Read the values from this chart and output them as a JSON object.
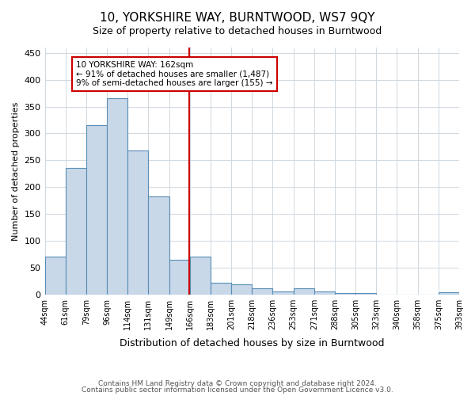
{
  "title": "10, YORKSHIRE WAY, BURNTWOOD, WS7 9QY",
  "subtitle": "Size of property relative to detached houses in Burntwood",
  "xlabel": "Distribution of detached houses by size in Burntwood",
  "ylabel": "Number of detached properties",
  "footnote1": "Contains HM Land Registry data © Crown copyright and database right 2024.",
  "footnote2": "Contains public sector information licensed under the Open Government Licence v3.0.",
  "bin_labels": [
    "44sqm",
    "61sqm",
    "79sqm",
    "96sqm",
    "114sqm",
    "131sqm",
    "149sqm",
    "166sqm",
    "183sqm",
    "201sqm",
    "218sqm",
    "236sqm",
    "253sqm",
    "271sqm",
    "288sqm",
    "305sqm",
    "323sqm",
    "340sqm",
    "358sqm",
    "375sqm",
    "393sqm"
  ],
  "bar_values": [
    70,
    235,
    315,
    365,
    268,
    183,
    65,
    70,
    22,
    18,
    11,
    6,
    11,
    5,
    3,
    3,
    0,
    0,
    0,
    4
  ],
  "bar_color": "#c8d8e8",
  "bar_edgecolor": "#5a8db5",
  "vline_x": 6.47,
  "vline_color": "#cc0000",
  "annotation_text": "10 YORKSHIRE WAY: 162sqm\n← 91% of detached houses are smaller (1,487)\n9% of semi-detached houses are larger (155) →",
  "annotation_box_color": "#ffffff",
  "annotation_box_edgecolor": "#cc0000",
  "ylim": [
    0,
    460
  ],
  "yticks": [
    0,
    50,
    100,
    150,
    200,
    250,
    300,
    350,
    400,
    450
  ],
  "background_color": "#ffffff",
  "grid_color": "#d0d8e0"
}
